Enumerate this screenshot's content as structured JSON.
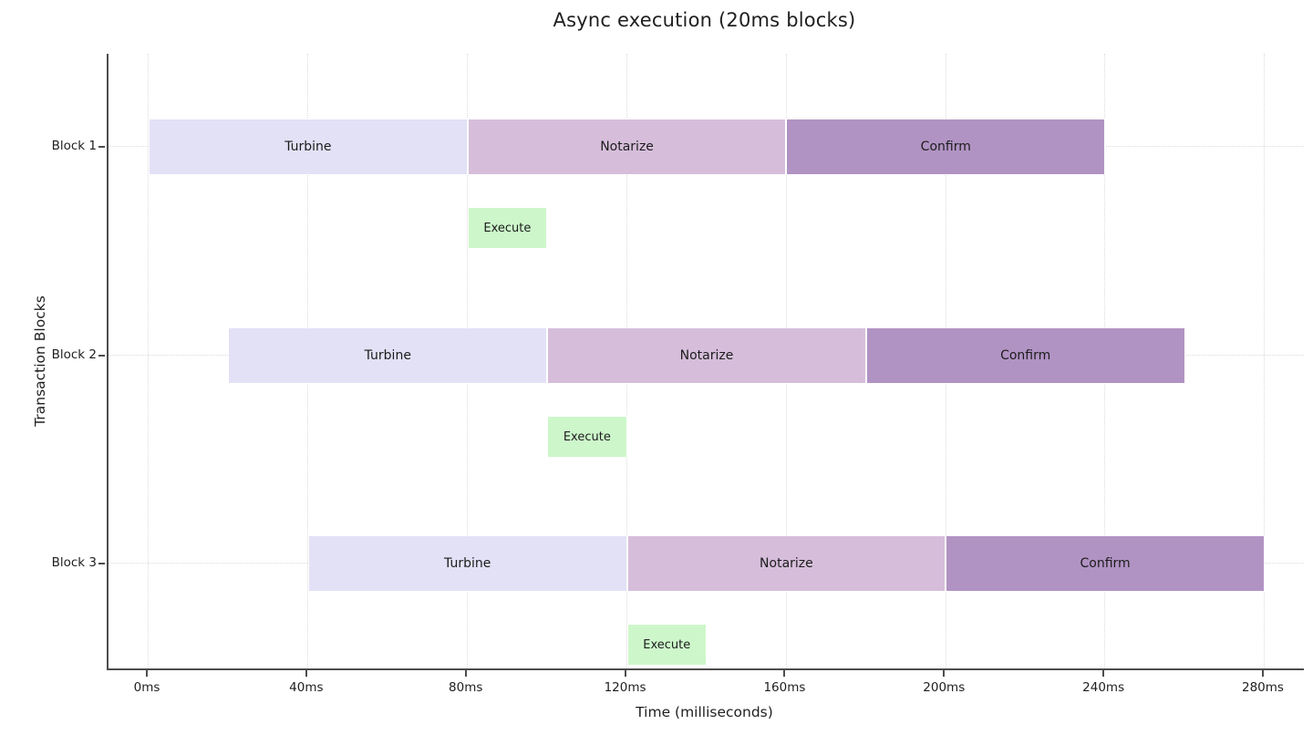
{
  "chart_data": {
    "type": "gantt",
    "title": "Async execution (20ms blocks)",
    "xlabel": "Time (milliseconds)",
    "ylabel": "Transaction Blocks",
    "x_unit": "ms",
    "xlim": [
      -10,
      290
    ],
    "block_duration_ms": 20,
    "grid": {
      "style": "dotted",
      "vertical": true,
      "horizontal": true
    },
    "legend": "none",
    "colors": {
      "Turbine": "#e2e1f6",
      "Notarize": "#d6bedb",
      "Confirm": "#b193c3",
      "Execute": "#cdf7cb"
    },
    "x_ticks": [
      {
        "value": 0,
        "label": "0ms"
      },
      {
        "value": 40,
        "label": "40ms"
      },
      {
        "value": 80,
        "label": "80ms"
      },
      {
        "value": 120,
        "label": "120ms"
      },
      {
        "value": 160,
        "label": "160ms"
      },
      {
        "value": 200,
        "label": "200ms"
      },
      {
        "value": 240,
        "label": "240ms"
      },
      {
        "value": 280,
        "label": "280ms"
      }
    ],
    "rows": [
      {
        "label": "Block 1",
        "bars": [
          {
            "name": "Turbine",
            "start": 0,
            "end": 80,
            "lane": "phase"
          },
          {
            "name": "Notarize",
            "start": 80,
            "end": 160,
            "lane": "phase"
          },
          {
            "name": "Confirm",
            "start": 160,
            "end": 240,
            "lane": "phase"
          },
          {
            "name": "Execute",
            "start": 80,
            "end": 100,
            "lane": "execute"
          }
        ]
      },
      {
        "label": "Block 2",
        "bars": [
          {
            "name": "Turbine",
            "start": 20,
            "end": 100,
            "lane": "phase"
          },
          {
            "name": "Notarize",
            "start": 100,
            "end": 180,
            "lane": "phase"
          },
          {
            "name": "Confirm",
            "start": 180,
            "end": 260,
            "lane": "phase"
          },
          {
            "name": "Execute",
            "start": 100,
            "end": 120,
            "lane": "execute"
          }
        ]
      },
      {
        "label": "Block 3",
        "bars": [
          {
            "name": "Turbine",
            "start": 40,
            "end": 120,
            "lane": "phase"
          },
          {
            "name": "Notarize",
            "start": 120,
            "end": 200,
            "lane": "phase"
          },
          {
            "name": "Confirm",
            "start": 200,
            "end": 280,
            "lane": "phase"
          },
          {
            "name": "Execute",
            "start": 120,
            "end": 140,
            "lane": "execute"
          }
        ]
      }
    ]
  }
}
